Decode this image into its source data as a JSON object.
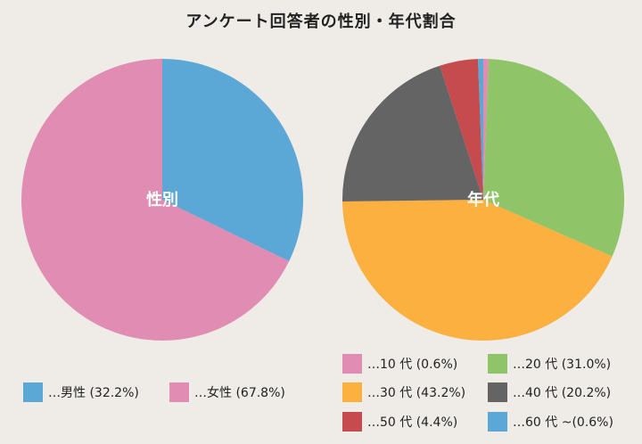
{
  "title": "アンケート回答者の性別・年代割合",
  "chart_data": [
    {
      "type": "pie",
      "center_label": "性別",
      "slices": [
        {
          "label": "男性",
          "value": 32.2,
          "color": "#5ba7d6",
          "legend": "…男性 (32.2%)"
        },
        {
          "label": "女性",
          "value": 67.8,
          "color": "#e18db3",
          "legend": "…女性 (67.8%)"
        }
      ]
    },
    {
      "type": "pie",
      "center_label": "年代",
      "slices": [
        {
          "label": "10代",
          "value": 0.6,
          "color": "#e18db3",
          "legend": "…10 代 (0.6%)"
        },
        {
          "label": "20代",
          "value": 31.0,
          "color": "#8fc468",
          "legend": "…20 代 (31.0%)"
        },
        {
          "label": "30代",
          "value": 43.2,
          "color": "#fbb040",
          "legend": "…30 代 (43.2%)"
        },
        {
          "label": "40代",
          "value": 20.2,
          "color": "#646464",
          "legend": "…40 代 (20.2%)"
        },
        {
          "label": "50代",
          "value": 4.4,
          "color": "#c64b4e",
          "legend": "…50 代 (4.4%)"
        },
        {
          "label": "60代～",
          "value": 0.6,
          "color": "#5ba7d6",
          "legend": "…60 代 ~(0.6%)"
        }
      ]
    }
  ]
}
